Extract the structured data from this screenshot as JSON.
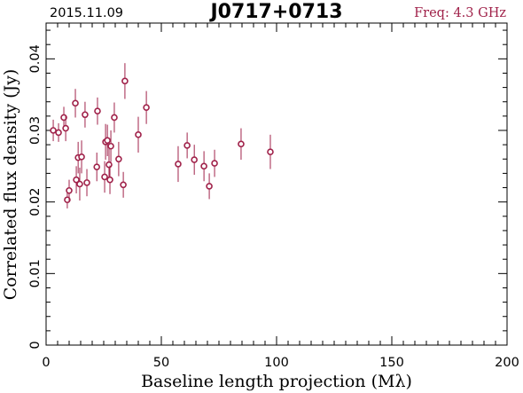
{
  "header": {
    "date": "2015.11.09",
    "source": "J0717+0713",
    "freq": "Freq: 4.3 GHz"
  },
  "chart_data": {
    "type": "scatter",
    "xlabel": "Baseline length projection (Mλ)",
    "ylabel": "Correlated flux density (Jy)",
    "xlim": [
      0,
      200
    ],
    "ylim": [
      0,
      0.045
    ],
    "xticks": [
      0,
      50,
      100,
      150,
      200
    ],
    "xtick_labels": [
      "0",
      "50",
      "100",
      "150",
      "200"
    ],
    "yticks": [
      0,
      0.01,
      0.02,
      0.03,
      0.04
    ],
    "ytick_labels": [
      "0",
      "0.01",
      "0.02",
      "0.03",
      "0.04"
    ],
    "grid": false,
    "marker_color": "#a0224a",
    "points": [
      {
        "x": 3.1,
        "y": 0.03,
        "err": 0.0015
      },
      {
        "x": 5.4,
        "y": 0.0297,
        "err": 0.0013
      },
      {
        "x": 7.7,
        "y": 0.0318,
        "err": 0.0015
      },
      {
        "x": 8.5,
        "y": 0.0303,
        "err": 0.0018
      },
      {
        "x": 9.2,
        "y": 0.0203,
        "err": 0.0012
      },
      {
        "x": 10.0,
        "y": 0.0216,
        "err": 0.0015
      },
      {
        "x": 12.7,
        "y": 0.0338,
        "err": 0.002
      },
      {
        "x": 13.1,
        "y": 0.0231,
        "err": 0.0019
      },
      {
        "x": 13.9,
        "y": 0.0262,
        "err": 0.0022
      },
      {
        "x": 14.6,
        "y": 0.0225,
        "err": 0.0023
      },
      {
        "x": 15.4,
        "y": 0.0263,
        "err": 0.0023
      },
      {
        "x": 16.9,
        "y": 0.0322,
        "err": 0.0018
      },
      {
        "x": 17.7,
        "y": 0.0227,
        "err": 0.0019
      },
      {
        "x": 22.0,
        "y": 0.0249,
        "err": 0.002
      },
      {
        "x": 22.3,
        "y": 0.0327,
        "err": 0.0019
      },
      {
        "x": 25.4,
        "y": 0.0235,
        "err": 0.0022
      },
      {
        "x": 25.8,
        "y": 0.0284,
        "err": 0.0025
      },
      {
        "x": 26.6,
        "y": 0.0286,
        "err": 0.0022
      },
      {
        "x": 27.3,
        "y": 0.0252,
        "err": 0.0024
      },
      {
        "x": 27.7,
        "y": 0.0231,
        "err": 0.002
      },
      {
        "x": 28.1,
        "y": 0.0278,
        "err": 0.0022
      },
      {
        "x": 29.6,
        "y": 0.0318,
        "err": 0.0021
      },
      {
        "x": 31.5,
        "y": 0.026,
        "err": 0.0024
      },
      {
        "x": 33.5,
        "y": 0.0224,
        "err": 0.0018
      },
      {
        "x": 34.2,
        "y": 0.0369,
        "err": 0.0025
      },
      {
        "x": 40.0,
        "y": 0.0294,
        "err": 0.0025
      },
      {
        "x": 43.5,
        "y": 0.0332,
        "err": 0.0023
      },
      {
        "x": 57.3,
        "y": 0.0253,
        "err": 0.0025
      },
      {
        "x": 61.2,
        "y": 0.0279,
        "err": 0.0018
      },
      {
        "x": 64.3,
        "y": 0.0259,
        "err": 0.0021
      },
      {
        "x": 68.5,
        "y": 0.025,
        "err": 0.0021
      },
      {
        "x": 70.8,
        "y": 0.0222,
        "err": 0.0018
      },
      {
        "x": 73.1,
        "y": 0.0254,
        "err": 0.0019
      },
      {
        "x": 84.6,
        "y": 0.0281,
        "err": 0.0022
      },
      {
        "x": 97.3,
        "y": 0.027,
        "err": 0.0024
      }
    ]
  }
}
